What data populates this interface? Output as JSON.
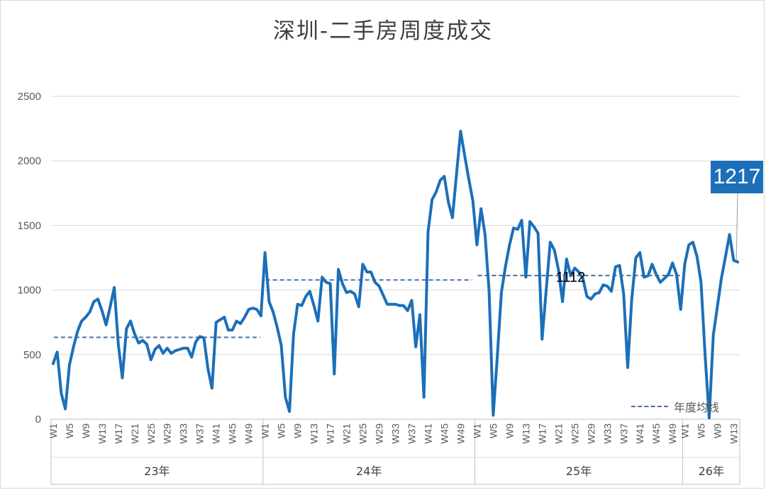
{
  "chart_data": {
    "type": "line",
    "title": "深圳-二手房周度成交",
    "ylim": [
      0,
      2500
    ],
    "yticks": [
      "0",
      "500",
      "1000",
      "1500",
      "2000",
      "2500"
    ],
    "grid": true,
    "groups": [
      {
        "label": "23年",
        "tick_labels": [
          "W1",
          "W5",
          "W9",
          "W13",
          "W17",
          "W21",
          "W25",
          "W29",
          "W33",
          "W37",
          "W41",
          "W45",
          "W49"
        ],
        "values": [
          430,
          520,
          200,
          80,
          420,
          560,
          680,
          760,
          790,
          830,
          910,
          930,
          840,
          730,
          870,
          1020,
          580,
          320,
          700,
          760,
          660,
          590,
          610,
          580,
          460,
          540,
          570,
          510,
          550,
          510,
          530,
          540,
          550,
          550,
          480,
          600,
          640,
          630,
          390,
          240,
          750,
          770,
          790,
          690,
          690,
          760,
          740,
          790,
          850,
          860,
          850,
          800
        ],
        "average": 634
      },
      {
        "label": "24年",
        "tick_labels": [
          "W1",
          "W5",
          "W9",
          "W13",
          "W17",
          "W21",
          "W25",
          "W29",
          "W33",
          "W37",
          "W41",
          "W45",
          "W49"
        ],
        "values": [
          1290,
          910,
          830,
          710,
          570,
          170,
          60,
          660,
          890,
          880,
          950,
          990,
          880,
          760,
          1100,
          1060,
          1050,
          350,
          1160,
          1050,
          980,
          990,
          970,
          870,
          1200,
          1140,
          1140,
          1060,
          1030,
          960,
          890,
          890,
          890,
          880,
          880,
          840,
          920,
          560,
          810,
          170,
          1450,
          1700,
          1760,
          1850,
          1880,
          1680,
          1560,
          1900,
          2230,
          2040,
          1860,
          1690
        ],
        "average": 1078
      },
      {
        "label": "25年",
        "tick_labels": [
          "W1",
          "W5",
          "W9",
          "W13",
          "W17",
          "W21",
          "W25",
          "W29",
          "W33",
          "W37",
          "W41",
          "W45",
          "W49"
        ],
        "values": [
          1350,
          1630,
          1430,
          990,
          30,
          480,
          980,
          1180,
          1350,
          1480,
          1470,
          1540,
          1100,
          1530,
          1490,
          1440,
          620,
          1000,
          1370,
          1310,
          1160,
          910,
          1240,
          1110,
          1170,
          1140,
          1090,
          950,
          930,
          970,
          980,
          1040,
          1030,
          990,
          1180,
          1190,
          970,
          400,
          930,
          1250,
          1290,
          1100,
          1110,
          1200,
          1120,
          1060,
          1090,
          1120,
          1210,
          1120,
          850
        ],
        "average": 1112
      },
      {
        "label": "26年",
        "tick_labels": [
          "W1",
          "W5",
          "W9",
          "W13"
        ],
        "values": [
          1200,
          1350,
          1370,
          1260,
          1060,
          490,
          10,
          650,
          870,
          1090,
          1260,
          1430,
          1230,
          1217
        ],
        "average": null
      }
    ],
    "annotations": {
      "average_label": "1112",
      "last_value_callout": "1217"
    },
    "legend": {
      "label": "年度均线",
      "position": "bottom-right"
    },
    "colors": {
      "line": "#1c6fb8",
      "average": "#4a6fa0",
      "grid": "#d9d9d9",
      "callout_bg": "#1c6fb8"
    }
  }
}
